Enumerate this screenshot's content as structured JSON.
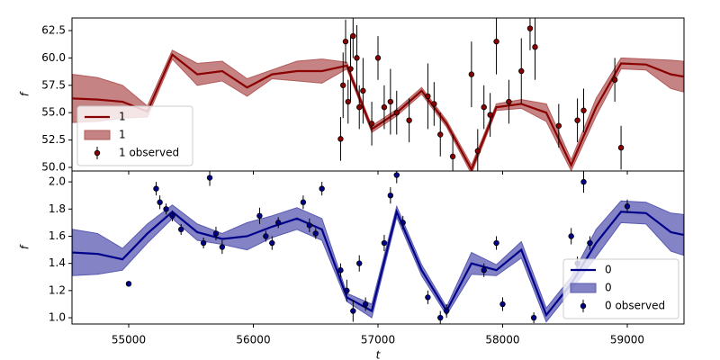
{
  "chart_data": [
    {
      "type": "line",
      "ylabel": "f",
      "legend": "lower left",
      "xlim": [
        54545,
        59455
      ],
      "xticks": [
        55000,
        56000,
        57000,
        58000,
        59000
      ],
      "ylim": [
        49.67,
        63.65
      ],
      "yticks": [
        {
          "value": 50,
          "label": "50.0"
        },
        52.5,
        {
          "value": 55,
          "label": "55.0"
        },
        57.5,
        {
          "value": 60,
          "label": "60.0"
        },
        62.5
      ],
      "x": [
        54550,
        54750,
        54950,
        55150,
        55350,
        55550,
        55750,
        55950,
        56150,
        56350,
        56550,
        56750,
        56950,
        57150,
        57350,
        57550,
        57750,
        57950,
        58150,
        58350,
        58550,
        58750,
        58950,
        59150,
        59350,
        59450
      ],
      "series": [
        {
          "name": "1",
          "kind": "line",
          "color": "#8b0000",
          "values": [
            56.3,
            56.2,
            56.0,
            55.1,
            60.3,
            58.5,
            58.8,
            57.3,
            58.5,
            58.8,
            58.8,
            59.3,
            53.5,
            55.0,
            57.0,
            54.0,
            49.8,
            55.5,
            55.8,
            55.0,
            50.2,
            55.5,
            59.5,
            59.4,
            58.5,
            58.3
          ]
        },
        {
          "name": "1",
          "kind": "band",
          "color": "#b35a5a",
          "lower": [
            54.1,
            54.2,
            54.5,
            54.6,
            59.9,
            57.5,
            57.9,
            56.5,
            58.1,
            57.9,
            57.7,
            59.0,
            53.2,
            54.7,
            56.7,
            53.7,
            49.4,
            55.2,
            55.4,
            54.2,
            49.7,
            54.7,
            59.0,
            58.9,
            57.2,
            56.9
          ],
          "upper": [
            58.5,
            58.2,
            57.5,
            55.6,
            60.7,
            59.5,
            59.7,
            58.1,
            58.9,
            59.7,
            59.9,
            59.6,
            53.8,
            55.3,
            57.3,
            54.3,
            50.2,
            55.8,
            56.2,
            55.8,
            50.7,
            56.3,
            60.0,
            59.9,
            59.8,
            59.7
          ]
        },
        {
          "name": "1 observed",
          "kind": "errorbar",
          "color": "#8b0000",
          "x": [
            56700,
            56720,
            56740,
            56760,
            56780,
            56800,
            56830,
            56850,
            56880,
            56950,
            57000,
            57050,
            57100,
            57150,
            57250,
            57400,
            57450,
            57500,
            57600,
            57750,
            57800,
            57850,
            57900,
            57950,
            58050,
            58150,
            58220,
            58260,
            58450,
            58600,
            58650,
            58900,
            58950
          ],
          "values": [
            52.6,
            57.5,
            61.5,
            56.0,
            59.0,
            62.0,
            60.0,
            55.5,
            57.0,
            54.0,
            60.0,
            55.5,
            56.0,
            55.0,
            54.3,
            56.5,
            55.8,
            53.0,
            51.0,
            58.5,
            51.5,
            55.5,
            54.8,
            61.5,
            56.0,
            58.8,
            62.7,
            61.0,
            53.8,
            54.3,
            55.2,
            58.0,
            51.8
          ],
          "errors": [
            2,
            3,
            2,
            2,
            3,
            2,
            3,
            2,
            3,
            2,
            2,
            2,
            3,
            2,
            2,
            3,
            2,
            2,
            2,
            3,
            2,
            2,
            2,
            3,
            2,
            3,
            2,
            3,
            2,
            2,
            2,
            2,
            2
          ]
        }
      ]
    },
    {
      "type": "line",
      "ylabel": "f",
      "xlabel": "t",
      "legend": "lower right",
      "xlim": [
        54545,
        59455
      ],
      "xticks": [
        55000,
        56000,
        57000,
        58000,
        59000
      ],
      "ylim": [
        0.954,
        2.08
      ],
      "yticks": [
        {
          "value": 1.0,
          "label": "1.0"
        },
        1.2,
        1.4,
        1.6,
        1.8,
        {
          "value": 2.0,
          "label": "2.0"
        }
      ],
      "x": [
        54550,
        54750,
        54950,
        55150,
        55350,
        55550,
        55750,
        55950,
        56150,
        56350,
        56550,
        56750,
        56950,
        57150,
        57350,
        57550,
        57750,
        57950,
        58150,
        58350,
        58550,
        58750,
        58950,
        59150,
        59350,
        59450
      ],
      "series": [
        {
          "name": "0",
          "kind": "line",
          "color": "#00008b",
          "values": [
            1.48,
            1.47,
            1.43,
            1.62,
            1.78,
            1.63,
            1.58,
            1.6,
            1.67,
            1.73,
            1.65,
            1.15,
            1.05,
            1.78,
            1.35,
            1.05,
            1.4,
            1.35,
            1.5,
            1.02,
            1.25,
            1.55,
            1.78,
            1.77,
            1.63,
            1.61
          ]
        },
        {
          "name": "0",
          "kind": "band",
          "color": "#5a5ab3",
          "lower": [
            1.31,
            1.32,
            1.35,
            1.55,
            1.73,
            1.57,
            1.54,
            1.5,
            1.59,
            1.65,
            1.57,
            1.12,
            1.0,
            1.74,
            1.31,
            1.02,
            1.32,
            1.31,
            1.44,
            0.97,
            1.2,
            1.45,
            1.7,
            1.69,
            1.49,
            1.46
          ],
          "upper": [
            1.65,
            1.62,
            1.51,
            1.69,
            1.83,
            1.69,
            1.62,
            1.7,
            1.75,
            1.81,
            1.73,
            1.18,
            1.1,
            1.82,
            1.39,
            1.08,
            1.48,
            1.39,
            1.56,
            1.07,
            1.3,
            1.65,
            1.86,
            1.85,
            1.77,
            1.76
          ]
        },
        {
          "name": "0 observed",
          "kind": "errorbar",
          "color": "#00008b",
          "x": [
            55000,
            55220,
            55250,
            55300,
            55350,
            55420,
            55600,
            55650,
            55700,
            55750,
            56050,
            56100,
            56150,
            56200,
            56400,
            56450,
            56500,
            56550,
            56700,
            56750,
            56800,
            56850,
            56900,
            57050,
            57100,
            57150,
            57200,
            57400,
            57500,
            57550,
            57850,
            57950,
            58000,
            58250,
            58550,
            58600,
            58650,
            58700,
            59000
          ],
          "values": [
            1.25,
            1.95,
            1.85,
            1.8,
            1.75,
            1.65,
            1.55,
            2.03,
            1.62,
            1.52,
            1.75,
            1.6,
            1.55,
            1.7,
            1.85,
            1.68,
            1.62,
            1.95,
            1.35,
            1.2,
            1.05,
            1.4,
            1.1,
            1.55,
            1.9,
            2.05,
            1.7,
            1.15,
            1.0,
            1.05,
            1.35,
            1.55,
            1.1,
            1.0,
            1.6,
            1.4,
            2.0,
            1.55,
            1.82
          ],
          "errors": [
            0.02,
            0.05,
            0.05,
            0.04,
            0.04,
            0.04,
            0.04,
            0.06,
            0.05,
            0.05,
            0.06,
            0.04,
            0.05,
            0.04,
            0.05,
            0.05,
            0.04,
            0.05,
            0.05,
            0.08,
            0.08,
            0.06,
            0.05,
            0.06,
            0.06,
            0.06,
            0.05,
            0.05,
            0.05,
            0.05,
            0.05,
            0.05,
            0.05,
            0.04,
            0.06,
            0.05,
            0.08,
            0.05,
            0.05
          ]
        }
      ]
    }
  ]
}
